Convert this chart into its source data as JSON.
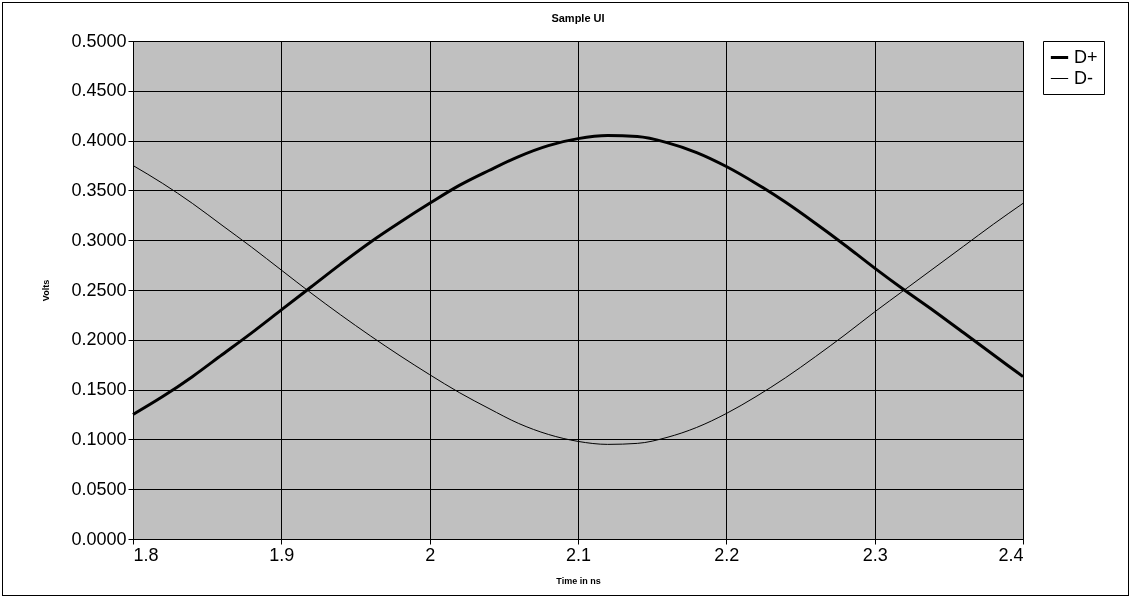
{
  "chart_data": {
    "type": "line",
    "title": "Sample UI",
    "xlabel": "Time in ns",
    "ylabel": "Volts",
    "x": [
      1.8,
      1.82,
      1.84,
      1.86,
      1.88,
      1.9,
      1.92,
      1.94,
      1.96,
      1.98,
      2.0,
      2.02,
      2.04,
      2.06,
      2.08,
      2.1,
      2.12,
      2.14,
      2.16,
      2.18,
      2.2,
      2.22,
      2.24,
      2.26,
      2.28,
      2.3,
      2.32,
      2.34,
      2.36,
      2.38,
      2.4
    ],
    "series": [
      {
        "name": "D+",
        "color": "#000000",
        "values": [
          0.125,
          0.143,
          0.163,
          0.185,
          0.207,
          0.23,
          0.253,
          0.276,
          0.298,
          0.318,
          0.337,
          0.355,
          0.37,
          0.384,
          0.395,
          0.402,
          0.405,
          0.404,
          0.398,
          0.388,
          0.374,
          0.357,
          0.338,
          0.317,
          0.295,
          0.272,
          0.25,
          0.229,
          0.207,
          0.185,
          0.163
        ]
      },
      {
        "name": "D-",
        "color": "#000000",
        "values": [
          0.375,
          0.357,
          0.337,
          0.315,
          0.293,
          0.27,
          0.247,
          0.225,
          0.204,
          0.184,
          0.165,
          0.147,
          0.131,
          0.116,
          0.105,
          0.098,
          0.095,
          0.096,
          0.102,
          0.112,
          0.126,
          0.143,
          0.162,
          0.183,
          0.205,
          0.228,
          0.25,
          0.272,
          0.294,
          0.316,
          0.337
        ]
      }
    ],
    "xlim": [
      1.8,
      2.4
    ],
    "xticks": [
      1.8,
      1.9,
      2,
      2.1,
      2.2,
      2.3,
      2.4
    ],
    "ylim": [
      0,
      0.5
    ],
    "yticks": [
      {
        "value": 0,
        "label": "0.0000"
      },
      {
        "value": 0.05,
        "label": "0.0500"
      },
      {
        "value": 0.1,
        "label": "0.1000"
      },
      {
        "value": 0.15,
        "label": "0.1500"
      },
      {
        "value": 0.2,
        "label": "0.2000"
      },
      {
        "value": 0.25,
        "label": "0.2500"
      },
      {
        "value": 0.3,
        "label": "0.3000"
      },
      {
        "value": 0.35,
        "label": "0.3500"
      },
      {
        "value": 0.4,
        "label": "0.4000"
      },
      {
        "value": 0.45,
        "label": "0.4500"
      },
      {
        "value": 0.5,
        "label": "0.5000"
      }
    ],
    "grid": true,
    "legend": "right",
    "marker": "none",
    "line_style": "solid"
  }
}
